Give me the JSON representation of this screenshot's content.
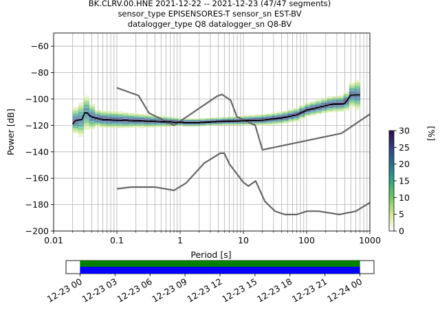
{
  "chart_data": [
    {
      "type": "heatmap",
      "title": [
        "BK.CLRV.00.HNE   2021-12-22 -- 2021-12-23  (47/47 segments)",
        "sensor_type EPISENSORES-T sensor_sn EST-BV",
        "datalogger_type Q8 datalogger_sn Q8-BV"
      ],
      "xlabel": "Period [s]",
      "ylabel": "Power [dB]",
      "xscale": "log",
      "xlim": [
        0.01,
        1000
      ],
      "ylim": [
        -200,
        -50
      ],
      "xticks": [
        0.01,
        0.1,
        1,
        10,
        100,
        1000
      ],
      "xtick_labels": [
        "0.01",
        "0.1",
        "1",
        "10",
        "100",
        "1000"
      ],
      "yticks": [
        -200,
        -180,
        -160,
        -140,
        -120,
        -100,
        -80,
        -60
      ],
      "grid": true,
      "colorbar": {
        "label": "[%]",
        "min": 0,
        "max": 30,
        "ticks": [
          0,
          5,
          10,
          15,
          20,
          25,
          30
        ],
        "colormap": [
          "#ffffff",
          "#cfe896",
          "#74c95b",
          "#2ea586",
          "#2a6f8e",
          "#323f85",
          "#2b0b47"
        ]
      },
      "noise_model_high": {
        "x": [
          0.1,
          0.22,
          0.32,
          0.8,
          3.8,
          4.6,
          6.3,
          7.9,
          15.4,
          20,
          354.8,
          1000
        ],
        "y": [
          -91.5,
          -97.4,
          -110.5,
          -120,
          -98,
          -96.5,
          -101,
          -113.5,
          -120,
          -138.5,
          -126,
          -111.5
        ]
      },
      "noise_model_low": {
        "x": [
          0.1,
          0.17,
          0.4,
          0.8,
          1.24,
          2.4,
          4.3,
          5.0,
          6.0,
          10.0,
          12.0,
          15.6,
          21.9,
          31.6,
          45,
          70,
          101,
          154,
          328,
          600,
          1000
        ],
        "y": [
          -168,
          -166.7,
          -166.7,
          -169.2,
          -163.7,
          -148.6,
          -141.1,
          -141.1,
          -149.2,
          -163.2,
          -166,
          -162.1,
          -177.5,
          -185,
          -187.5,
          -187.5,
          -185,
          -185,
          -187.5,
          -185,
          -178.5
        ]
      },
      "mode_curve": {
        "x": [
          0.02,
          0.022,
          0.025,
          0.028,
          0.031,
          0.034,
          0.038,
          0.045,
          0.06,
          0.1,
          0.2,
          0.4,
          0.8,
          1.2,
          2,
          3,
          5,
          10,
          20,
          40,
          70,
          100,
          150,
          250,
          400,
          500,
          600,
          700
        ],
        "y": [
          -119,
          -116.5,
          -116,
          -115.5,
          -110.5,
          -110.5,
          -113,
          -114.5,
          -115.5,
          -116,
          -116.5,
          -117,
          -117.5,
          -118,
          -118,
          -117.5,
          -117,
          -116.5,
          -116,
          -114.5,
          -112,
          -108.5,
          -106.5,
          -104,
          -103.5,
          -97,
          -97,
          -97
        ]
      },
      "psd_distribution": [
        {
          "x": 0.02,
          "spread": 4
        },
        {
          "x": 0.03,
          "spread": 7
        },
        {
          "x": 0.05,
          "spread": 3
        },
        {
          "x": 0.1,
          "spread": 3
        },
        {
          "x": 0.5,
          "spread": 2
        },
        {
          "x": 1,
          "spread": 1.5
        },
        {
          "x": 5,
          "spread": 1.5
        },
        {
          "x": 20,
          "spread": 2
        },
        {
          "x": 100,
          "spread": 2.5
        },
        {
          "x": 400,
          "spread": 3
        },
        {
          "x": 700,
          "spread": 6
        }
      ]
    },
    {
      "type": "bar",
      "xtick_labels": [
        "12-23 00",
        "12-23 03",
        "12-23 06",
        "12-23 09",
        "12-23 12",
        "12-23 15",
        "12-23 18",
        "12-23 21",
        "12-24 00"
      ],
      "coverage": {
        "data_color": "#008000",
        "psd_color": "#0000ff",
        "data_start_hours": 0,
        "data_end_hours": 24,
        "xlim_hours": [
          -1.2,
          25.2
        ]
      }
    }
  ]
}
